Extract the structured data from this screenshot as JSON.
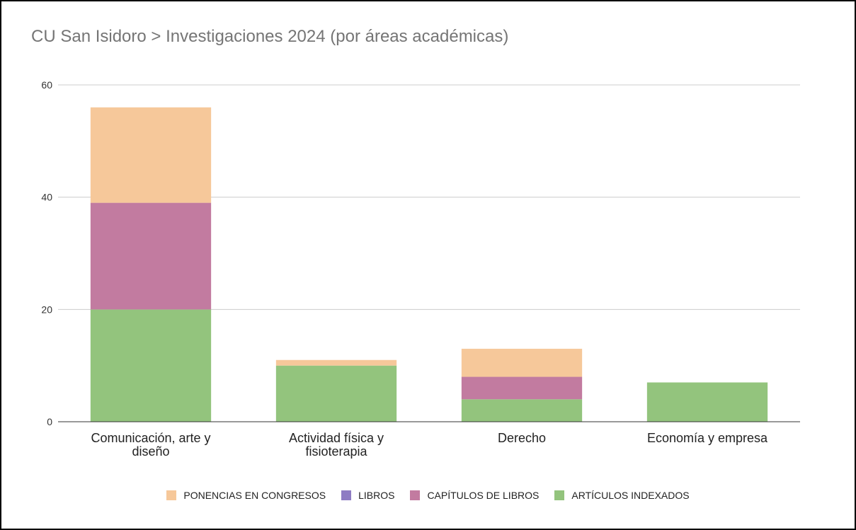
{
  "chart_data": {
    "type": "bar",
    "stacked": true,
    "title": "CU San Isidoro > Investigaciones 2024 (por áreas académicas)",
    "categories": [
      [
        "Comunicación, arte y",
        "diseño"
      ],
      [
        "Actividad física y",
        "fisioterapia"
      ],
      [
        "Derecho"
      ],
      [
        "Economía y empresa"
      ]
    ],
    "series": [
      {
        "name": "ARTÍCULOS INDEXADOS",
        "color": "#93c47d",
        "values": [
          20,
          10,
          4,
          7
        ]
      },
      {
        "name": "CAPÍTULOS DE LIBROS",
        "color": "#c27ba0",
        "values": [
          19,
          0,
          4,
          0
        ]
      },
      {
        "name": "LIBROS",
        "color": "#8e7cc3",
        "values": [
          0,
          0,
          0,
          0
        ]
      },
      {
        "name": "PONENCIAS EN CONGRESOS",
        "color": "#f6c89a",
        "values": [
          17,
          1,
          5,
          0
        ]
      }
    ],
    "legend_order": [
      "PONENCIAS EN CONGRESOS",
      "LIBROS",
      "CAPÍTULOS DE LIBROS",
      "ARTÍCULOS INDEXADOS"
    ],
    "ylim": [
      0,
      60
    ],
    "yticks": [
      0,
      20,
      40,
      60
    ],
    "grid": true,
    "legend_position": "bottom"
  }
}
